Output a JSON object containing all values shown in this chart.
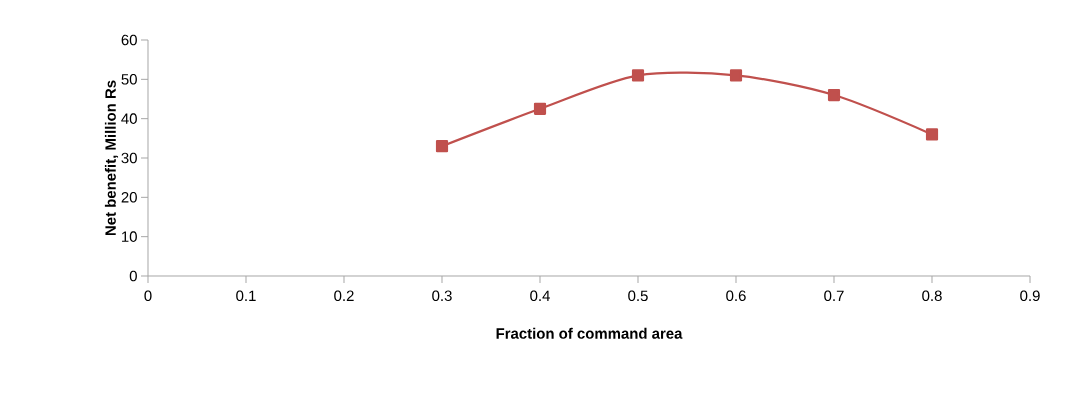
{
  "chart_data": {
    "type": "line",
    "xlabel": "Fraction of command area",
    "ylabel": "Net benefit, Million Rs",
    "x": [
      0.3,
      0.4,
      0.5,
      0.6,
      0.7,
      0.8
    ],
    "series": [
      {
        "color": "#c0504d",
        "values": [
          33,
          42.5,
          51,
          51,
          46,
          36
        ]
      }
    ],
    "xlim": [
      0,
      0.9
    ],
    "xticks": [
      0,
      0.1,
      0.2,
      0.3,
      0.4,
      0.5,
      0.6,
      0.7,
      0.8,
      0.9
    ],
    "ylim": [
      0,
      60
    ],
    "yticks": [
      0,
      10,
      20,
      30,
      40,
      50,
      60
    ],
    "marker": "square",
    "line_style": "solid",
    "grid": false,
    "legend": false
  }
}
